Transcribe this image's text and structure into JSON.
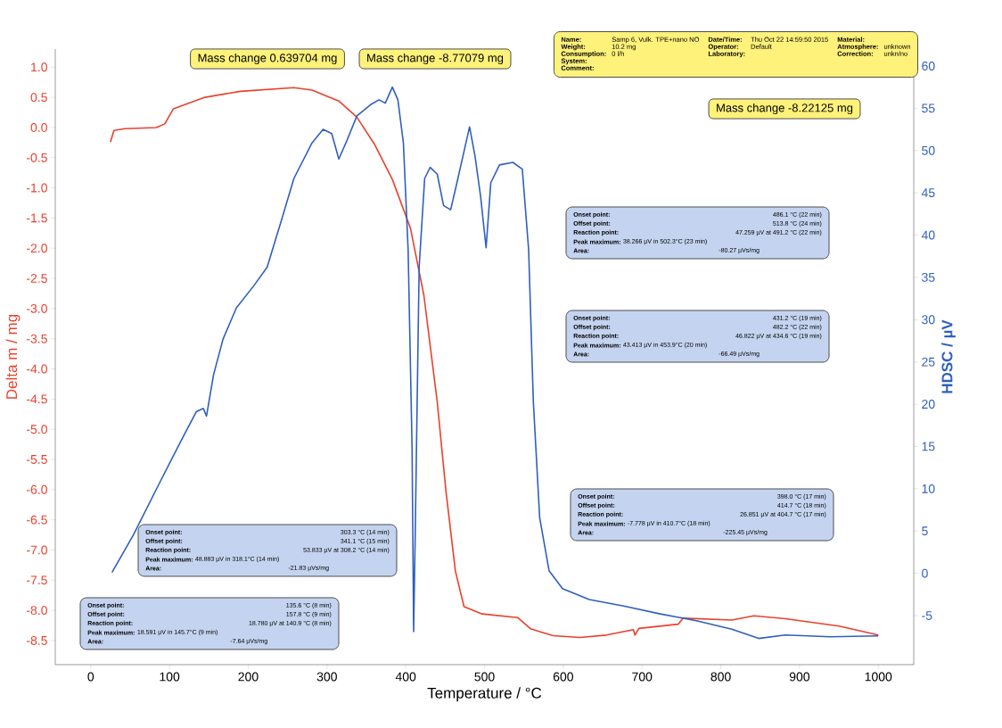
{
  "chart_data": {
    "type": "line",
    "xlabel": "Temperature / °C",
    "ylabel": "Delta m / mg",
    "y2label": "HDSC / µV",
    "xlim": [
      -45,
      1045
    ],
    "xticks": [
      0,
      100,
      200,
      300,
      400,
      500,
      600,
      700,
      800,
      900,
      1000
    ],
    "ylim": [
      -8.9,
      1.3
    ],
    "yticks": [
      {
        "value": 1.0,
        "label": "1.0"
      },
      {
        "value": 0.5,
        "label": "0.5"
      },
      {
        "value": 0.0,
        "label": "0.0"
      },
      {
        "value": -0.5,
        "label": "-0.5"
      },
      {
        "value": -1.0,
        "label": "-1.0"
      },
      {
        "value": -1.5,
        "label": "-1.5"
      },
      {
        "value": -2.0,
        "label": "-2.0"
      },
      {
        "value": -2.5,
        "label": "-2.5"
      },
      {
        "value": -3.0,
        "label": "-3.0"
      },
      {
        "value": -3.5,
        "label": "-3.5"
      },
      {
        "value": -4.0,
        "label": "-4.0"
      },
      {
        "value": -4.5,
        "label": "-4.5"
      },
      {
        "value": -5.0,
        "label": "-5.0"
      },
      {
        "value": -5.5,
        "label": "-5.5"
      },
      {
        "value": -6.0,
        "label": "-6.0"
      },
      {
        "value": -6.5,
        "label": "-6.5"
      },
      {
        "value": -7.0,
        "label": "-7.0"
      },
      {
        "value": -7.5,
        "label": "-7.5"
      },
      {
        "value": -8.0,
        "label": "-8.0"
      },
      {
        "value": -8.5,
        "label": "-8.5"
      }
    ],
    "y2lim": [
      -10.8,
      62
    ],
    "y2ticks": [
      -5,
      0,
      5,
      10,
      15,
      20,
      25,
      30,
      35,
      40,
      45,
      50,
      55,
      60
    ],
    "series": [
      {
        "color": "#e8412c",
        "x": [
          25,
          29.5,
          43,
          83,
          94,
          105,
          145,
          190,
          258,
          281,
          315,
          338,
          360,
          383,
          406,
          423,
          440,
          451,
          463,
          474,
          497,
          542,
          559,
          587,
          621,
          655,
          689,
          691,
          696,
          746,
          752,
          814,
          842,
          882,
          950,
          1000
        ],
        "values": [
          -0.24,
          -0.05,
          -0.02,
          0.0,
          0.06,
          0.31,
          0.5,
          0.6,
          0.66,
          0.62,
          0.44,
          0.17,
          -0.27,
          -0.86,
          -1.67,
          -2.78,
          -4.55,
          -6.02,
          -7.35,
          -7.94,
          -8.06,
          -8.12,
          -8.31,
          -8.42,
          -8.45,
          -8.41,
          -8.32,
          -8.41,
          -8.3,
          -8.23,
          -8.13,
          -8.16,
          -8.09,
          -8.14,
          -8.26,
          -8.41
        ]
      },
      {
        "color": "#2f5fbf",
        "axis": "y2",
        "x": [
          27,
          54,
          88,
          117,
          134,
          143,
          147,
          156,
          168,
          185,
          207,
          224,
          241,
          258,
          281,
          295,
          306,
          315,
          324,
          338,
          355,
          366,
          374,
          383,
          390,
          397,
          403,
          408,
          410,
          412,
          417,
          424,
          431,
          440,
          448,
          457,
          465,
          474,
          481,
          488,
          495,
          502,
          508,
          519,
          536,
          548,
          556,
          562,
          570,
          582,
          599,
          633,
          678,
          723,
          769,
          814,
          848,
          882,
          939,
          1000
        ],
        "values": [
          0.1,
          4.5,
          10.8,
          16.1,
          19.1,
          19.5,
          18.6,
          23.5,
          27.7,
          31.4,
          34.0,
          36.2,
          41.4,
          46.7,
          50.9,
          52.5,
          52.0,
          49.0,
          50.9,
          54.1,
          55.4,
          56.0,
          55.6,
          57.5,
          56.0,
          50.9,
          38.3,
          15.0,
          -6.9,
          4.5,
          36.2,
          46.7,
          48.0,
          47.2,
          43.5,
          43.0,
          46.2,
          49.9,
          52.8,
          49.3,
          44.6,
          38.5,
          46.2,
          48.3,
          48.6,
          47.8,
          38.3,
          20.3,
          6.6,
          0.3,
          -1.8,
          -3.1,
          -3.9,
          -4.8,
          -5.6,
          -6.6,
          -7.7,
          -7.3,
          -7.5,
          -7.4
        ]
      }
    ],
    "annotations": [
      "Mass change  0.639704 mg",
      "Mass change  -8.77079 mg",
      "Mass change  -8.22125 mg",
      "Name:",
      "Samp 6, Vulk. TPE+nano NO",
      "Weight:",
      "10.2 mg",
      "Consumption:",
      "0 l/h",
      "System:",
      "Comment:",
      "Date/Time:",
      "Thu Oct 22 14:59:50 2015",
      "Operator:",
      "Default",
      "Laboratory:",
      "Material:",
      "Atmosphere:",
      "unknown",
      "Correction:",
      "unkn/no",
      "Onset point:",
      "486.1 °C (22 min)",
      "Offset point:",
      "513.8 °C (24 min)",
      "Reaction point:",
      "47.259 µV at 491.2 °C (22 min)",
      "Peak maximum:",
      "38.266 µV in 502.3°C (23 min)",
      "Area:",
      "-80.27 µVs/mg",
      "Onset point:",
      "431.2 °C (19 min)",
      "Offset point:",
      "482.2 °C (22 min)",
      "Reaction point:",
      "46.822 µV at 434.6 °C (19 min)",
      "Peak maximum:",
      "43.413 µV in 453.9°C (20 min)",
      "Area:",
      "-66.49 µVs/mg",
      "Onset point:",
      "398.0 °C (17 min)",
      "Offset point:",
      "414.7 °C (18 min)",
      "Reaction point:",
      "26.851 µV at 404.7 °C (17 min)",
      "Peak maximum:",
      "-7.778 µV in 410.7°C (18 min)",
      "Area:",
      "-225.45 µVs/mg",
      "Onset point:",
      "303.3 °C (14 min)",
      "Offset point:",
      "341.1 °C (15 min)",
      "Reaction point:",
      "53.833 µV at 308.2 °C (14 min)",
      "Peak maximum:",
      "48.883 µV in 318.1°C (14 min)",
      "Area:",
      "-21.83 µVs/mg",
      "Onset point:",
      "135.6 °C (8 min)",
      "Offset point:",
      "157.8 °C (9 min)",
      "Reaction point:",
      "18.780 µV at 140.9 °C (8 min)",
      "Peak maximum:",
      "18.591 µV in 145.7°C (9 min)",
      "Area:",
      "-7.64 µVs/mg"
    ]
  }
}
